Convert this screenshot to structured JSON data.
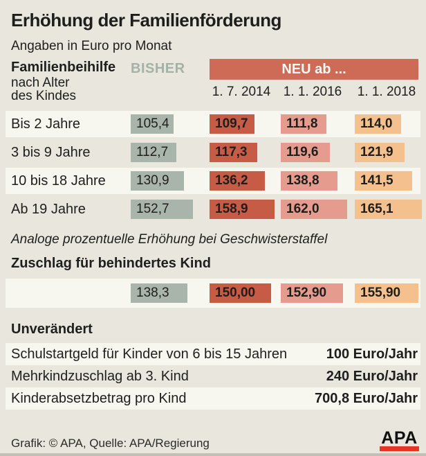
{
  "title": "Erhöhung der Familienförderung",
  "subtitle": "Angaben in Euro pro Monat",
  "header": {
    "col_label_bold": "Familienbeihilfe",
    "col_label_line2": "nach Alter",
    "col_label_line3": "des Kindes",
    "bisher": "BISHER",
    "neu": "NEU ab ...",
    "dates": [
      "1. 7. 2014",
      "1. 1. 2016",
      "1. 1. 2018"
    ]
  },
  "rows": [
    {
      "label": "Bis 2 Jahre",
      "display": [
        "105,4",
        "109,7",
        "111,8",
        "114,0"
      ],
      "values": [
        105.4,
        109.7,
        111.8,
        114.0
      ]
    },
    {
      "label": "3 bis 9 Jahre",
      "display": [
        "112,7",
        "117,3",
        "119,6",
        "121,9"
      ],
      "values": [
        112.7,
        117.3,
        119.6,
        121.9
      ]
    },
    {
      "label": "10 bis 18 Jahre",
      "display": [
        "130,9",
        "136,2",
        "138,8",
        "141,5"
      ],
      "values": [
        130.9,
        136.2,
        138.8,
        141.5
      ]
    },
    {
      "label": "Ab 19 Jahre",
      "display": [
        "152,7",
        "158,9",
        "162,0",
        "165,1"
      ],
      "values": [
        152.7,
        158.9,
        162.0,
        165.1
      ]
    }
  ],
  "note": "Analoge prozentuelle Erhöhung bei Geschwisterstaffel",
  "zuschlag": {
    "heading": "Zuschlag für behindertes Kind",
    "display": [
      "138,3",
      "150,00",
      "152,90",
      "155,90"
    ],
    "values": [
      138.3,
      150.0,
      152.9,
      155.9
    ]
  },
  "unveraendert": {
    "heading": "Unverändert",
    "rows": [
      {
        "label": "Schulstartgeld für Kinder von 6 bis 15 Jahren",
        "value": "100 Euro/Jahr"
      },
      {
        "label": "Mehrkindzuschlag ab 3. Kind",
        "value": "240 Euro/Jahr"
      },
      {
        "label": "Kinderabsetzbetrag pro Kind",
        "value": "700,8 Euro/Jahr"
      }
    ]
  },
  "footer": {
    "credit": "Grafik: © APA, Quelle: APA/Regierung",
    "logo_text": "APA"
  },
  "colors": {
    "background": "#E9E7DD",
    "row_stripe": "#F7F6EF",
    "bisher_green": "#A9B5AA",
    "bisher_label_green": "#A4B1A5",
    "neu_header_red": "#CD6B57",
    "neu_2014_red": "#C65B46",
    "neu_2016_pink": "#E59B8D",
    "neu_2018_orange": "#F4C08E",
    "text_black": "#1E1E1C",
    "apa_logo_red": "#E5352B"
  },
  "chart_data": {
    "type": "bar",
    "title": "Erhöhung der Familienförderung",
    "subtitle": "Angaben in Euro pro Monat",
    "unit": "Euro pro Monat",
    "orientation": "horizontal",
    "categories": [
      "Bis 2 Jahre",
      "3 bis 9 Jahre",
      "10 bis 18 Jahre",
      "Ab 19 Jahre",
      "Zuschlag für behindertes Kind"
    ],
    "series": [
      {
        "name": "BISHER",
        "values": [
          105.4,
          112.7,
          130.9,
          152.7,
          138.3
        ]
      },
      {
        "name": "NEU ab 1. 7. 2014",
        "values": [
          109.7,
          117.3,
          136.2,
          158.9,
          150.0
        ]
      },
      {
        "name": "NEU ab 1. 1. 2016",
        "values": [
          111.8,
          119.6,
          138.8,
          162.0,
          152.9
        ]
      },
      {
        "name": "NEU ab 1. 1. 2018",
        "values": [
          114.0,
          121.9,
          141.5,
          165.1,
          155.9
        ]
      }
    ],
    "annotations": [
      "Analoge prozentuelle Erhöhung bei Geschwisterstaffel",
      "Unverändert: Schulstartgeld für Kinder von 6 bis 15 Jahren 100 Euro/Jahr",
      "Unverändert: Mehrkindzuschlag ab 3. Kind 240 Euro/Jahr",
      "Unverändert: Kinderabsetzbetrag pro Kind 700,8 Euro/Jahr"
    ],
    "legend_position": "top",
    "grid": false
  }
}
